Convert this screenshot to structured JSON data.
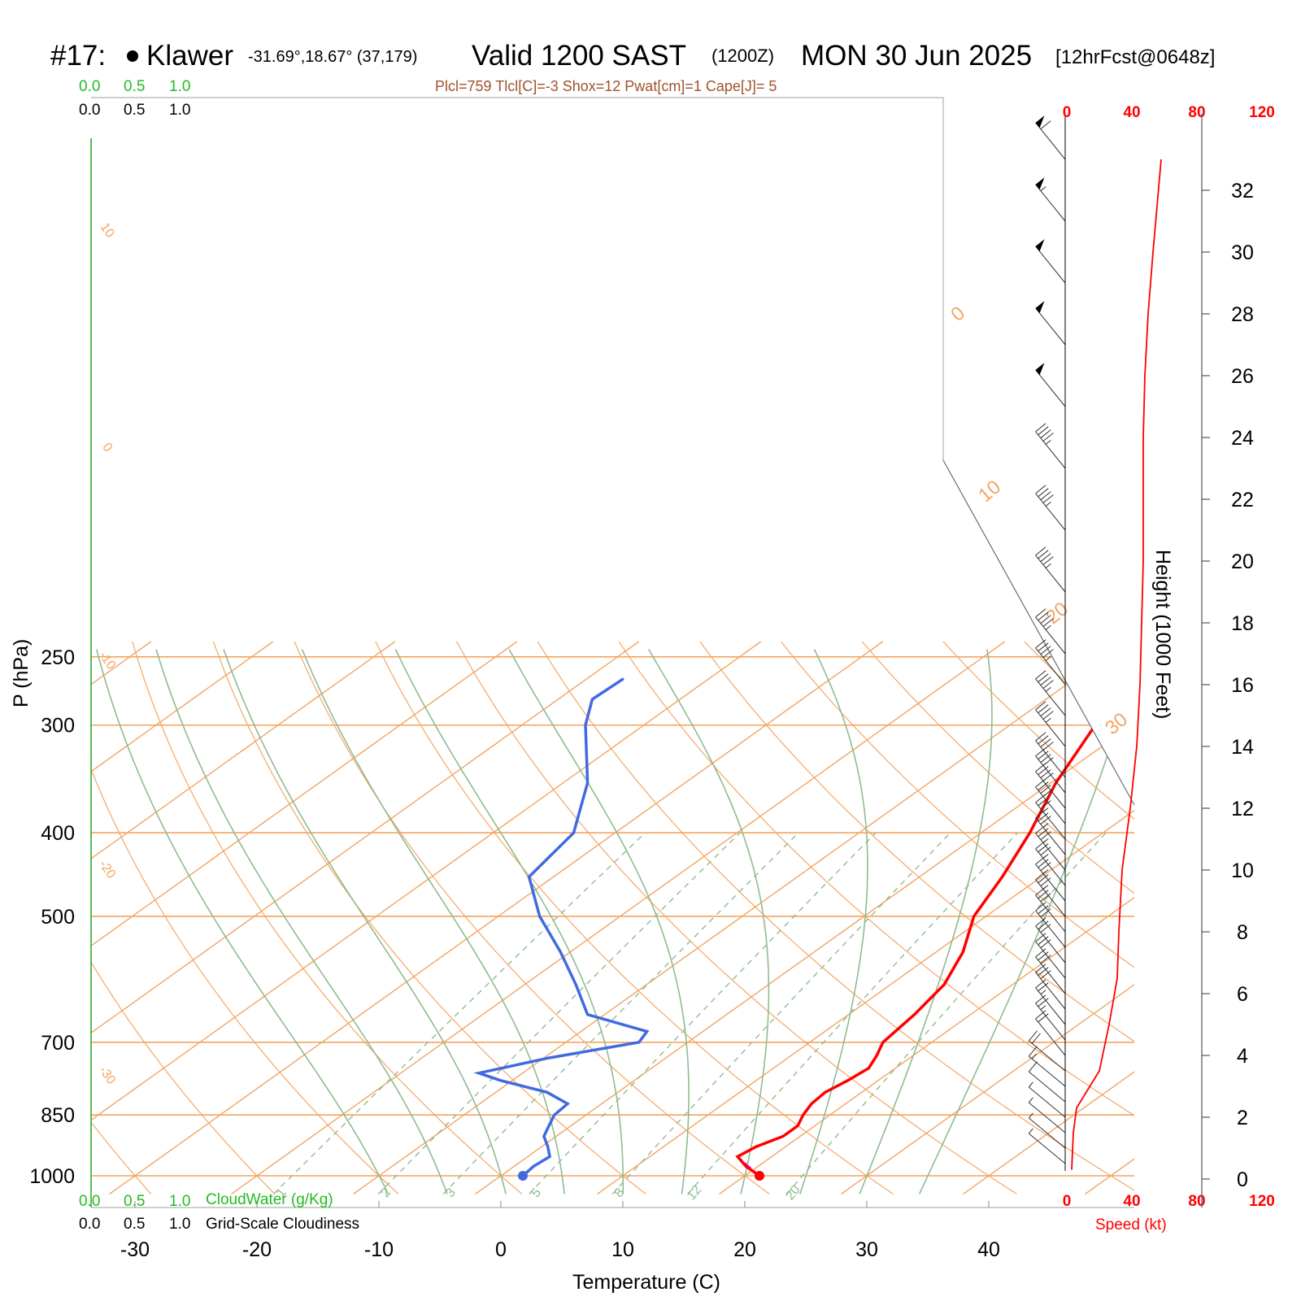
{
  "header": {
    "station": "#17:",
    "station_name": "Klawer",
    "coords": "-31.69°,18.67° (37,179)",
    "valid": "Valid 1200 SAST",
    "zulu": "(1200Z)",
    "date": "MON 30 Jun 2025",
    "forecast": "[12hrFcst@0648z]",
    "indices": "Plcl=759 Tlcl[C]=-3 Shox=12 Pwat[cm]=1 Cape[J]= 5"
  },
  "colors": {
    "temperature": "#ff0000",
    "dewpoint": "#4169e1",
    "isotherm": "#f4a460",
    "dry_adiabat": "#8fbc8f",
    "mixing_ratio": "#8fbc8f",
    "parcel": "#ff00ff"
  },
  "top_scales": {
    "cloudwater_ticks": [
      "0.0",
      "0.5",
      "1.0"
    ],
    "cloudiness_ticks": [
      "0.0",
      "0.5",
      "1.0"
    ]
  },
  "bottom_legend": {
    "cloudwater_ticks": [
      "0.0",
      "0.5",
      "1.0"
    ],
    "cloudwater_label": "CloudWater (g/Kg)",
    "cloudiness_ticks": [
      "0.0",
      "0.5",
      "1.0"
    ],
    "cloudiness_label": "Grid-Scale Cloudiness"
  },
  "speed_axis": {
    "label": "Speed (kt)",
    "ticks": [
      "0",
      "40",
      "80",
      "120"
    ]
  },
  "chart_data": {
    "type": "skew-t",
    "xlabel": "Temperature (C)",
    "ylabel": "P (hPa)",
    "y2label": "Height (1000 Feet)",
    "x_ticks": [
      -30,
      -20,
      -10,
      0,
      10,
      20,
      30,
      40
    ],
    "pressure_ticks": [
      250,
      300,
      400,
      500,
      700,
      850,
      1000
    ],
    "height_ticks_kft": [
      0,
      2,
      4,
      6,
      8,
      10,
      12,
      14,
      16,
      18,
      20,
      22,
      24,
      26,
      28,
      30,
      32
    ],
    "isotherm_labels": [
      "10",
      "0",
      "-10",
      "-20",
      "-30",
      "0",
      "10",
      "20",
      "30"
    ],
    "mixing_ratio_labels": [
      "1",
      "2",
      "3",
      "5",
      "8",
      "12",
      "20"
    ],
    "temperature_profile": [
      {
        "p": 1000,
        "t": 21.2
      },
      {
        "p": 975,
        "t": 19.0
      },
      {
        "p": 950,
        "t": 17.2
      },
      {
        "p": 925,
        "t": 17.6
      },
      {
        "p": 900,
        "t": 18.6
      },
      {
        "p": 875,
        "t": 18.6
      },
      {
        "p": 850,
        "t": 17.8
      },
      {
        "p": 825,
        "t": 17.2
      },
      {
        "p": 800,
        "t": 17.0
      },
      {
        "p": 775,
        "t": 17.5
      },
      {
        "p": 750,
        "t": 17.8
      },
      {
        "p": 725,
        "t": 17.0
      },
      {
        "p": 700,
        "t": 16.0
      },
      {
        "p": 650,
        "t": 15.4
      },
      {
        "p": 600,
        "t": 14.4
      },
      {
        "p": 550,
        "t": 12.2
      },
      {
        "p": 500,
        "t": 9.0
      },
      {
        "p": 450,
        "t": 6.8
      },
      {
        "p": 400,
        "t": 4.0
      },
      {
        "p": 350,
        "t": 0.4
      },
      {
        "p": 300,
        "t": -3.0
      },
      {
        "p": 270,
        "t": -5.8
      }
    ],
    "dewpoint_profile": [
      {
        "p": 1000,
        "td": 1.8
      },
      {
        "p": 975,
        "td": 1.6
      },
      {
        "p": 950,
        "td": 1.8
      },
      {
        "p": 925,
        "td": 0.5
      },
      {
        "p": 900,
        "td": -1.0
      },
      {
        "p": 875,
        "td": -1.8
      },
      {
        "p": 850,
        "td": -2.6
      },
      {
        "p": 825,
        "td": -2.8
      },
      {
        "p": 800,
        "td": -5.8
      },
      {
        "p": 775,
        "td": -11.0
      },
      {
        "p": 760,
        "td": -13.6
      },
      {
        "p": 730,
        "td": -9.6
      },
      {
        "p": 700,
        "td": -4.0
      },
      {
        "p": 680,
        "td": -4.6
      },
      {
        "p": 650,
        "td": -11.4
      },
      {
        "p": 600,
        "td": -15.8
      },
      {
        "p": 550,
        "td": -20.8
      },
      {
        "p": 500,
        "td": -26.6
      },
      {
        "p": 450,
        "td": -32.0
      },
      {
        "p": 400,
        "td": -33.4
      },
      {
        "p": 350,
        "td": -38.0
      },
      {
        "p": 300,
        "td": -44.8
      },
      {
        "p": 280,
        "td": -47.2
      },
      {
        "p": 265,
        "td": -47.0
      }
    ],
    "parcel_profile": [
      {
        "p": 1000,
        "t": 21.2
      },
      {
        "p": 950,
        "t": 17.2
      }
    ],
    "wind_speed_profile_kt": [
      {
        "h": 0.3,
        "s": 3
      },
      {
        "h": 1.5,
        "s": 4
      },
      {
        "h": 2.3,
        "s": 6
      },
      {
        "h": 3.5,
        "s": 20
      },
      {
        "h": 5.0,
        "s": 26
      },
      {
        "h": 6.5,
        "s": 31
      },
      {
        "h": 8.0,
        "s": 32
      },
      {
        "h": 10.0,
        "s": 34
      },
      {
        "h": 12.0,
        "s": 39
      },
      {
        "h": 14.0,
        "s": 43
      },
      {
        "h": 16.0,
        "s": 45
      },
      {
        "h": 18.0,
        "s": 46
      },
      {
        "h": 20.0,
        "s": 47
      },
      {
        "h": 22.0,
        "s": 47
      },
      {
        "h": 24.0,
        "s": 47
      },
      {
        "h": 26.0,
        "s": 48
      },
      {
        "h": 28.0,
        "s": 50
      },
      {
        "h": 30.0,
        "s": 53
      },
      {
        "h": 33.0,
        "s": 58
      }
    ],
    "wind_barb_levels_kft": [
      0.5,
      1,
      1.5,
      2,
      2.5,
      3,
      3.5,
      4,
      4.5,
      5,
      5.5,
      6,
      6.5,
      7,
      7.5,
      8,
      8.5,
      9,
      9.5,
      10,
      10.5,
      11,
      11.5,
      12,
      12.5,
      13,
      14,
      15,
      16,
      17,
      19,
      21,
      23,
      25,
      27,
      29,
      31,
      33
    ]
  }
}
